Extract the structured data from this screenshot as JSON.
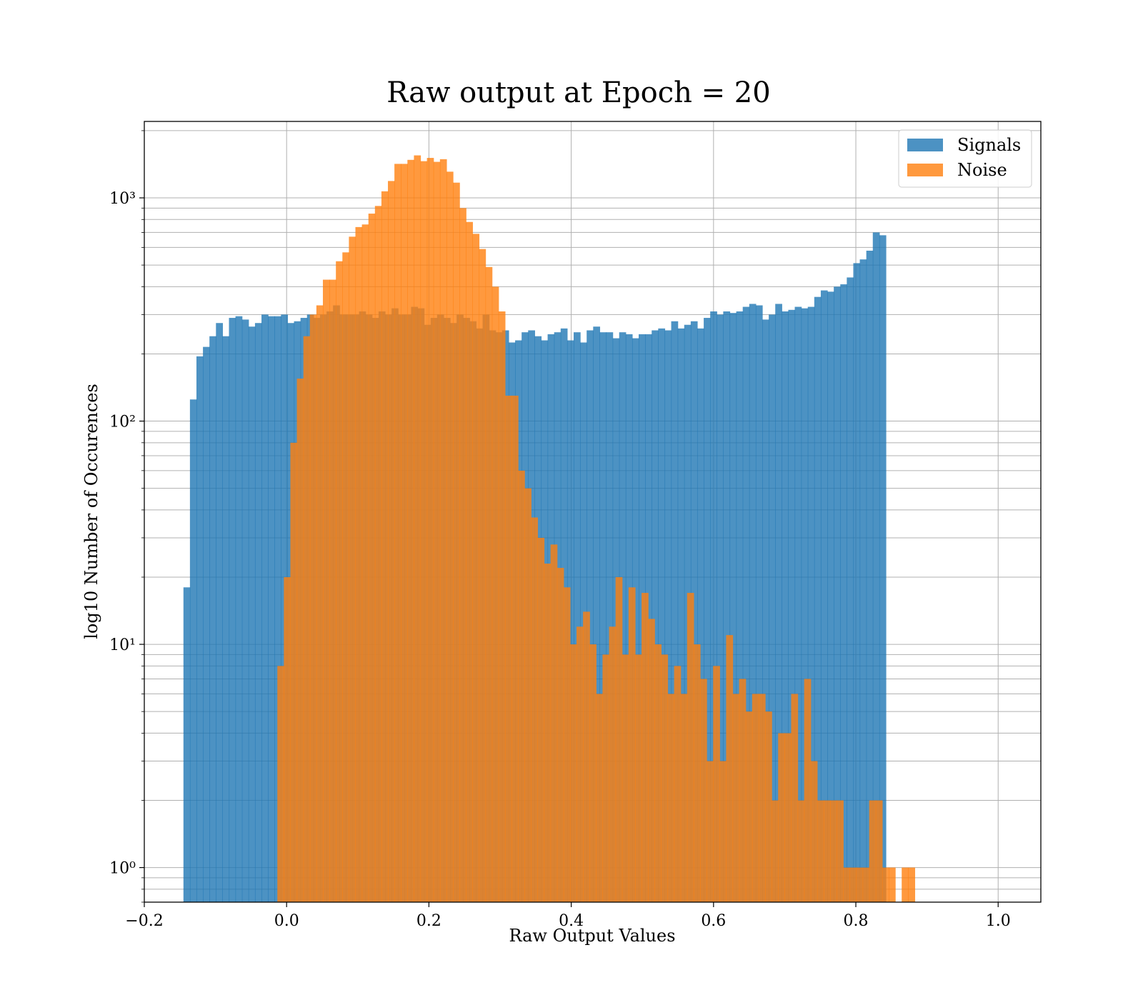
{
  "chart_data": {
    "type": "bar",
    "subtype": "overlapping-histogram",
    "title": "Raw output at Epoch = 20",
    "xlabel": "Raw Output Values",
    "ylabel": "log10 Number of Occurences",
    "xlim": [
      -0.2,
      1.06
    ],
    "ylim": [
      0.7,
      2200
    ],
    "yscale": "log",
    "grid": true,
    "legend_position": "top-right",
    "x_ticks": [
      -0.2,
      0.0,
      0.2,
      0.4,
      0.6,
      0.8,
      1.0
    ],
    "x_tick_labels": [
      "−0.2",
      "0.0",
      "0.2",
      "0.4",
      "0.6",
      "0.8",
      "1.0"
    ],
    "y_ticks": [
      1,
      10,
      100,
      1000
    ],
    "y_tick_labels": [
      "10⁰",
      "10¹",
      "10²",
      "10³"
    ],
    "series": [
      {
        "name": "Signals",
        "color": "#1f77b4",
        "opacity": 0.8,
        "bin_start": -0.145,
        "bin_width": 0.00914,
        "values": [
          18,
          125,
          195,
          215,
          240,
          275,
          240,
          290,
          295,
          285,
          265,
          275,
          300,
          295,
          295,
          300,
          275,
          280,
          290,
          300,
          290,
          300,
          310,
          330,
          300,
          300,
          300,
          310,
          300,
          290,
          310,
          300,
          320,
          300,
          300,
          325,
          320,
          270,
          290,
          300,
          290,
          275,
          300,
          290,
          280,
          260,
          300,
          255,
          250,
          255,
          225,
          230,
          250,
          255,
          240,
          230,
          245,
          250,
          260,
          230,
          250,
          225,
          255,
          265,
          250,
          250,
          235,
          250,
          245,
          235,
          245,
          245,
          255,
          260,
          255,
          280,
          260,
          270,
          280,
          260,
          290,
          310,
          300,
          310,
          305,
          310,
          325,
          335,
          330,
          285,
          300,
          335,
          310,
          315,
          325,
          320,
          325,
          360,
          385,
          380,
          400,
          410,
          440,
          510,
          530,
          580,
          700,
          680
        ]
      },
      {
        "name": "Noise",
        "color": "#ff7f0e",
        "opacity": 0.8,
        "bin_start": -0.013,
        "bin_width": 0.00914,
        "values": [
          8,
          20,
          80,
          155,
          240,
          300,
          330,
          430,
          430,
          520,
          570,
          670,
          740,
          760,
          850,
          920,
          1070,
          1190,
          1420,
          1420,
          1480,
          1550,
          1460,
          1510,
          1450,
          1490,
          1310,
          1170,
          900,
          780,
          690,
          590,
          490,
          400,
          310,
          130,
          130,
          60,
          50,
          37,
          30,
          23,
          28,
          22,
          18,
          10,
          12,
          14,
          10,
          6,
          9,
          12,
          20,
          9,
          18,
          9,
          17,
          13,
          10,
          9,
          6,
          8,
          6,
          17,
          10,
          7,
          3,
          8,
          3,
          11,
          6,
          7,
          5,
          6,
          6,
          5,
          2,
          4,
          4,
          6,
          2,
          7,
          3,
          2,
          2,
          2,
          2,
          1,
          1,
          1,
          1,
          2,
          2,
          1,
          1,
          0,
          1,
          1
        ]
      }
    ]
  }
}
